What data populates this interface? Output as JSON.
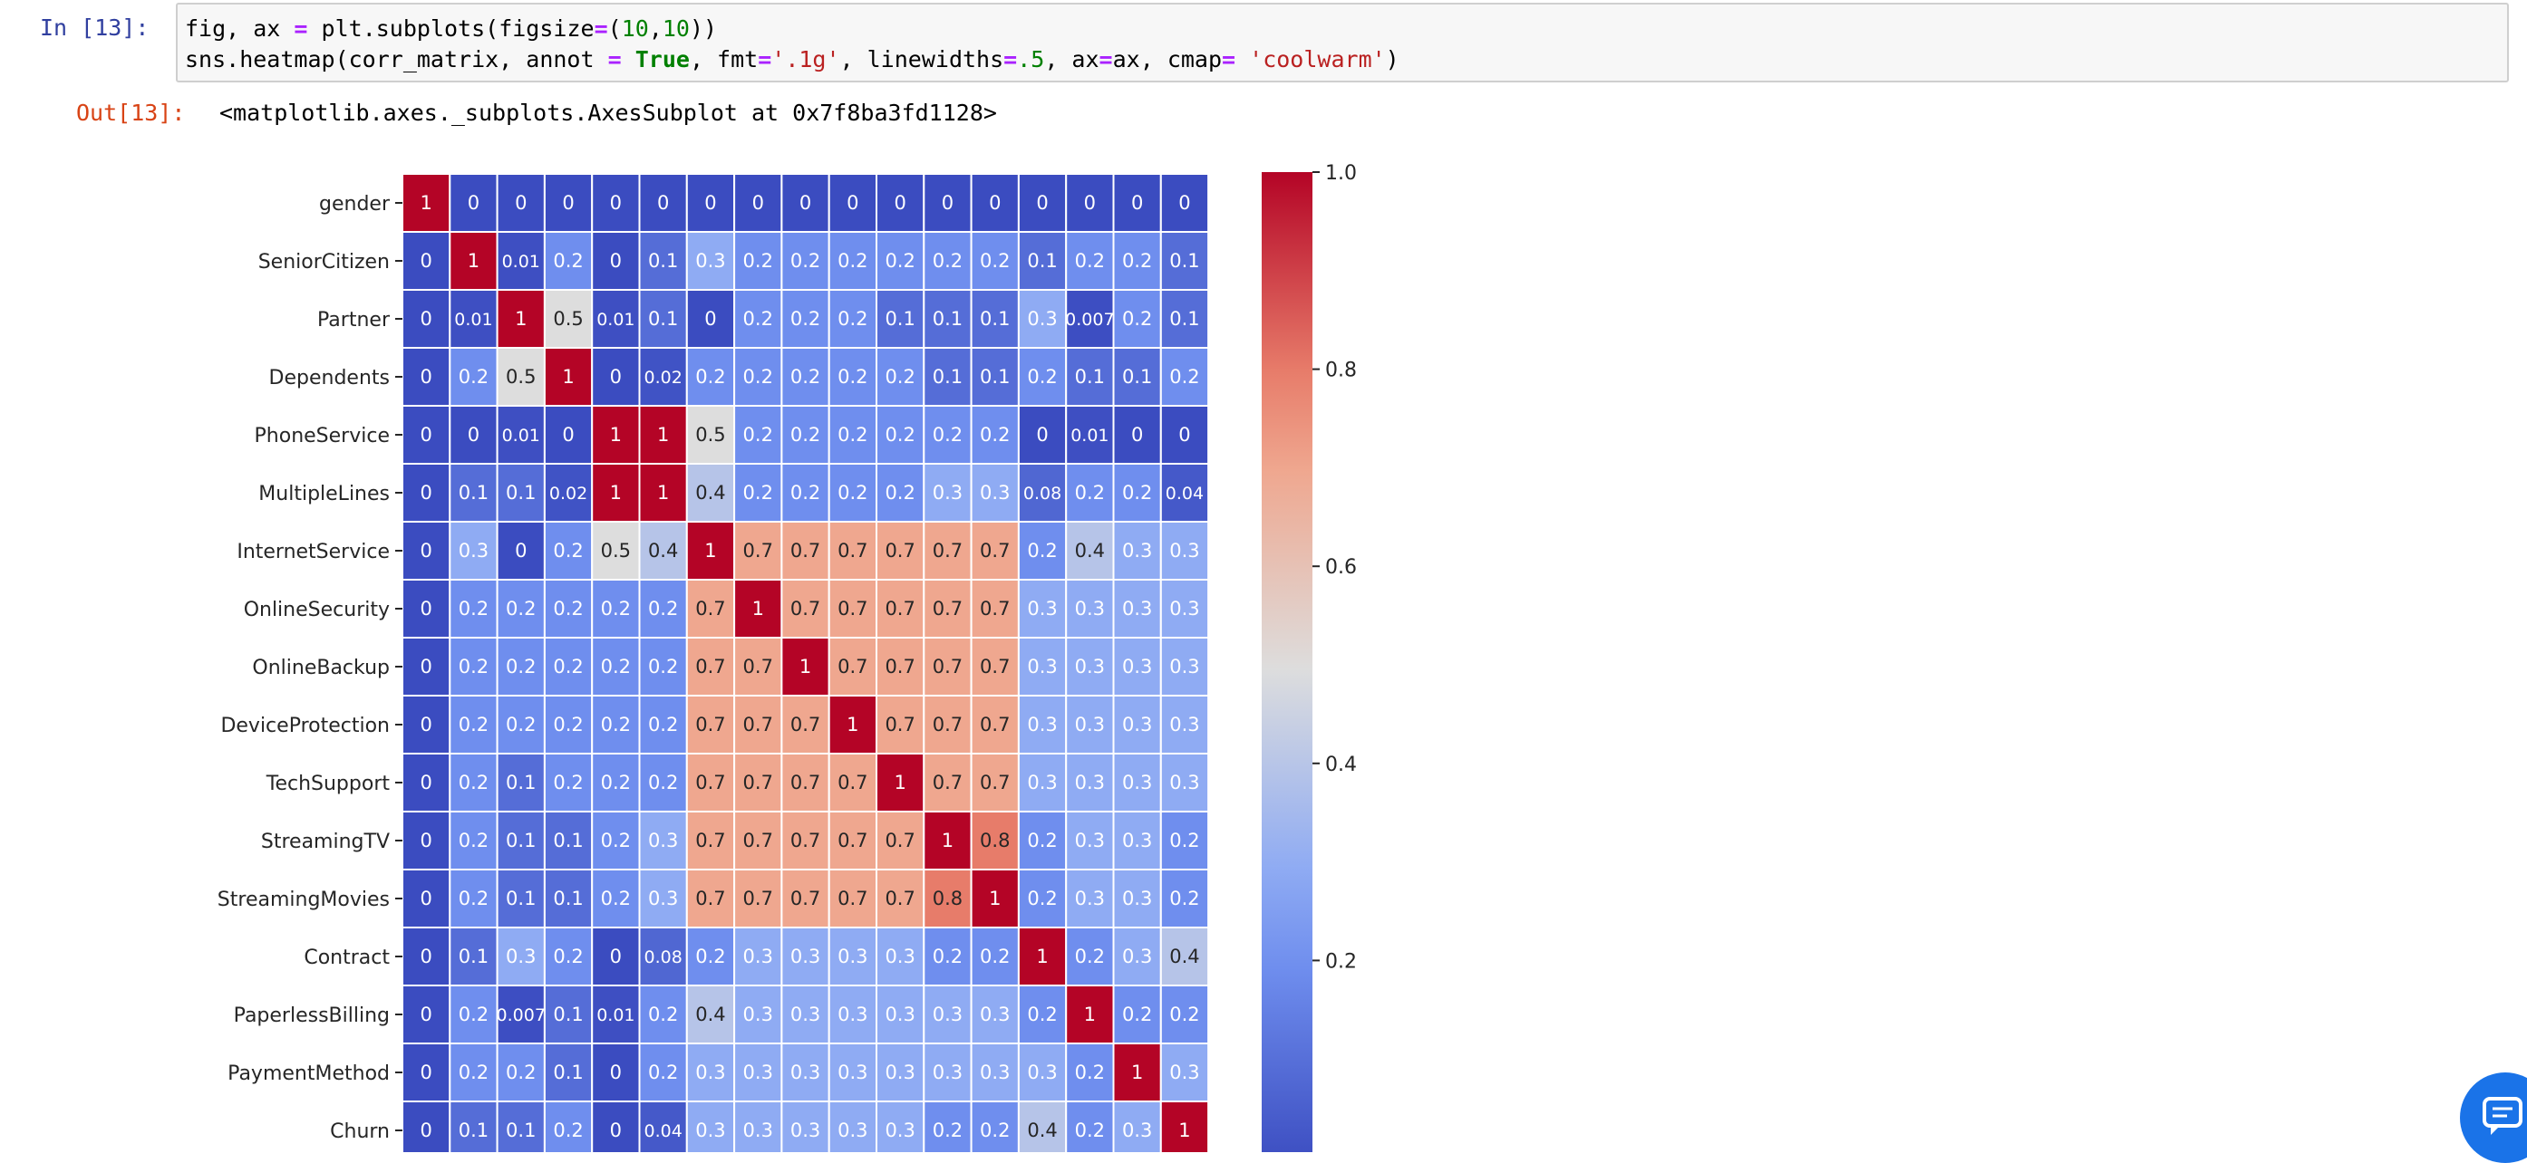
{
  "cell": {
    "in_prompt": "In [13]:",
    "out_prompt": "Out[13]:",
    "code_line_1": [
      {
        "t": "fig, ax ",
        "c": ""
      },
      {
        "t": "=",
        "c": "op"
      },
      {
        "t": " plt.subplots(figsize",
        "c": ""
      },
      {
        "t": "=",
        "c": "op"
      },
      {
        "t": "(",
        "c": ""
      },
      {
        "t": "10",
        "c": "num"
      },
      {
        "t": ",",
        "c": ""
      },
      {
        "t": "10",
        "c": "num"
      },
      {
        "t": "))",
        "c": ""
      }
    ],
    "code_line_2": [
      {
        "t": "sns.heatmap(corr_matrix, annot ",
        "c": ""
      },
      {
        "t": "=",
        "c": "op"
      },
      {
        "t": " ",
        "c": ""
      },
      {
        "t": "True",
        "c": "kw"
      },
      {
        "t": ", fmt",
        "c": ""
      },
      {
        "t": "=",
        "c": "op"
      },
      {
        "t": "'.1g'",
        "c": "str"
      },
      {
        "t": ", linewidths",
        "c": ""
      },
      {
        "t": "=",
        "c": "op"
      },
      {
        "t": ".5",
        "c": "num"
      },
      {
        "t": ", ax",
        "c": ""
      },
      {
        "t": "=",
        "c": "op"
      },
      {
        "t": "ax, cmap",
        "c": ""
      },
      {
        "t": "=",
        "c": "op"
      },
      {
        "t": " ",
        "c": ""
      },
      {
        "t": "'coolwarm'",
        "c": "str"
      },
      {
        "t": ")",
        "c": ""
      }
    ],
    "output_text": "<matplotlib.axes._subplots.AxesSubplot at 0x7f8ba3fd1128>"
  },
  "chart_data": {
    "type": "heatmap",
    "colormap": "coolwarm",
    "labels": [
      "gender",
      "SeniorCitizen",
      "Partner",
      "Dependents",
      "PhoneService",
      "MultipleLines",
      "InternetService",
      "OnlineSecurity",
      "OnlineBackup",
      "DeviceProtection",
      "TechSupport",
      "StreamingTV",
      "StreamingMovies",
      "Contract",
      "PaperlessBilling",
      "PaymentMethod",
      "Churn"
    ],
    "annotations": [
      [
        "1",
        "0",
        "0",
        "0",
        "0",
        "0",
        "0",
        "0",
        "0",
        "0",
        "0",
        "0",
        "0",
        "0",
        "0",
        "0",
        "0"
      ],
      [
        "0",
        "1",
        "0.01",
        "0.2",
        "0",
        "0.1",
        "0.3",
        "0.2",
        "0.2",
        "0.2",
        "0.2",
        "0.2",
        "0.2",
        "0.1",
        "0.2",
        "0.2",
        "0.1"
      ],
      [
        "0",
        "0.01",
        "1",
        "0.5",
        "0.01",
        "0.1",
        "0",
        "0.2",
        "0.2",
        "0.2",
        "0.1",
        "0.1",
        "0.1",
        "0.3",
        "0.007",
        "0.2",
        "0.1"
      ],
      [
        "0",
        "0.2",
        "0.5",
        "1",
        "0",
        "0.02",
        "0.2",
        "0.2",
        "0.2",
        "0.2",
        "0.2",
        "0.1",
        "0.1",
        "0.2",
        "0.1",
        "0.1",
        "0.2"
      ],
      [
        "0",
        "0",
        "0.01",
        "0",
        "1",
        "1",
        "0.5",
        "0.2",
        "0.2",
        "0.2",
        "0.2",
        "0.2",
        "0.2",
        "0",
        "0.01",
        "0",
        "0"
      ],
      [
        "0",
        "0.1",
        "0.1",
        "0.02",
        "1",
        "1",
        "0.4",
        "0.2",
        "0.2",
        "0.2",
        "0.2",
        "0.3",
        "0.3",
        "0.08",
        "0.2",
        "0.2",
        "0.04"
      ],
      [
        "0",
        "0.3",
        "0",
        "0.2",
        "0.5",
        "0.4",
        "1",
        "0.7",
        "0.7",
        "0.7",
        "0.7",
        "0.7",
        "0.7",
        "0.2",
        "0.4",
        "0.3",
        "0.3"
      ],
      [
        "0",
        "0.2",
        "0.2",
        "0.2",
        "0.2",
        "0.2",
        "0.7",
        "1",
        "0.7",
        "0.7",
        "0.7",
        "0.7",
        "0.7",
        "0.3",
        "0.3",
        "0.3",
        "0.3"
      ],
      [
        "0",
        "0.2",
        "0.2",
        "0.2",
        "0.2",
        "0.2",
        "0.7",
        "0.7",
        "1",
        "0.7",
        "0.7",
        "0.7",
        "0.7",
        "0.3",
        "0.3",
        "0.3",
        "0.3"
      ],
      [
        "0",
        "0.2",
        "0.2",
        "0.2",
        "0.2",
        "0.2",
        "0.7",
        "0.7",
        "0.7",
        "1",
        "0.7",
        "0.7",
        "0.7",
        "0.3",
        "0.3",
        "0.3",
        "0.3"
      ],
      [
        "0",
        "0.2",
        "0.1",
        "0.2",
        "0.2",
        "0.2",
        "0.7",
        "0.7",
        "0.7",
        "0.7",
        "1",
        "0.7",
        "0.7",
        "0.3",
        "0.3",
        "0.3",
        "0.3"
      ],
      [
        "0",
        "0.2",
        "0.1",
        "0.1",
        "0.2",
        "0.3",
        "0.7",
        "0.7",
        "0.7",
        "0.7",
        "0.7",
        "1",
        "0.8",
        "0.2",
        "0.3",
        "0.3",
        "0.2"
      ],
      [
        "0",
        "0.2",
        "0.1",
        "0.1",
        "0.2",
        "0.3",
        "0.7",
        "0.7",
        "0.7",
        "0.7",
        "0.7",
        "0.8",
        "1",
        "0.2",
        "0.3",
        "0.3",
        "0.2"
      ],
      [
        "0",
        "0.1",
        "0.3",
        "0.2",
        "0",
        "0.08",
        "0.2",
        "0.3",
        "0.3",
        "0.3",
        "0.3",
        "0.2",
        "0.2",
        "1",
        "0.2",
        "0.3",
        "0.4"
      ],
      [
        "0",
        "0.2",
        "0.007",
        "0.1",
        "0.01",
        "0.2",
        "0.4",
        "0.3",
        "0.3",
        "0.3",
        "0.3",
        "0.3",
        "0.3",
        "0.2",
        "1",
        "0.2",
        "0.2"
      ],
      [
        "0",
        "0.2",
        "0.2",
        "0.1",
        "0",
        "0.2",
        "0.3",
        "0.3",
        "0.3",
        "0.3",
        "0.3",
        "0.3",
        "0.3",
        "0.3",
        "0.2",
        "1",
        "0.3"
      ],
      [
        "0",
        "0.1",
        "0.1",
        "0.2",
        "0",
        "0.04",
        "0.3",
        "0.3",
        "0.3",
        "0.3",
        "0.3",
        "0.2",
        "0.2",
        "0.4",
        "0.2",
        "0.3",
        "1"
      ]
    ],
    "colorbar": {
      "range": [
        0,
        1.0
      ],
      "ticks": [
        "0.2",
        "0.4",
        "0.6",
        "0.8",
        "1.0"
      ]
    }
  },
  "icons": {
    "chat": "chat-bubble-icon"
  }
}
